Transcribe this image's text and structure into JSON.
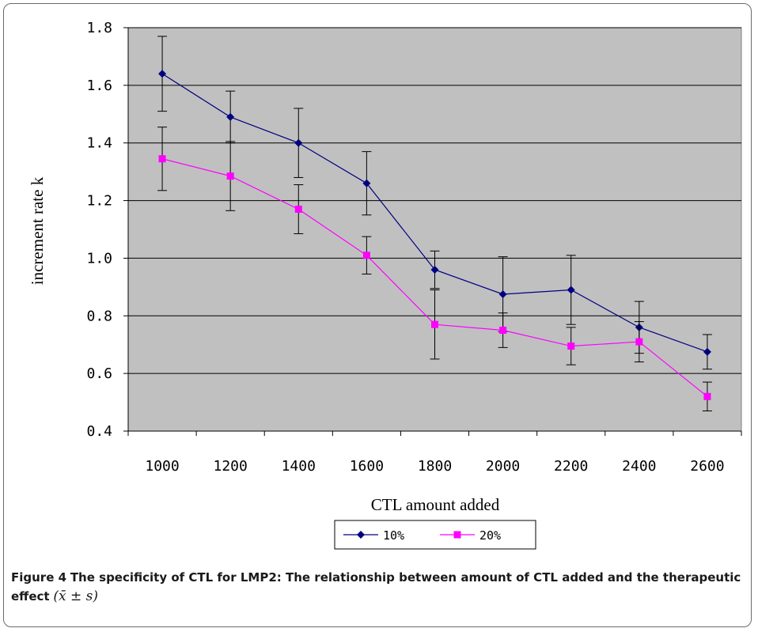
{
  "chart_data": {
    "type": "line",
    "title": "",
    "xlabel": "CTL amount added",
    "ylabel": "increment rate k",
    "categories": [
      "1000",
      "1200",
      "1400",
      "1600",
      "1800",
      "2000",
      "2200",
      "2400",
      "2600"
    ],
    "y_ticks": [
      "1.8",
      "1.6",
      "1.4",
      "1.2",
      "1.0",
      "0.8",
      "0.6",
      "0.4"
    ],
    "ylim": [
      0.4,
      1.8
    ],
    "grid": true,
    "legend_position": "bottom",
    "series": [
      {
        "name": "10%",
        "color": "#000080",
        "marker": "diamond",
        "values": [
          1.64,
          1.49,
          1.4,
          1.26,
          0.96,
          0.875,
          0.89,
          0.76,
          0.675
        ],
        "error": [
          0.13,
          0.09,
          0.12,
          0.11,
          0.065,
          0.13,
          0.12,
          0.09,
          0.06
        ]
      },
      {
        "name": "20%",
        "color": "#FF00FF",
        "marker": "square",
        "values": [
          1.345,
          1.285,
          1.17,
          1.01,
          0.77,
          0.75,
          0.695,
          0.71,
          0.52
        ],
        "error": [
          0.11,
          0.12,
          0.085,
          0.065,
          0.12,
          0.06,
          0.065,
          0.07,
          0.05
        ]
      }
    ],
    "colors": {
      "plot_background": "#C0C0C0",
      "gridline": "#000000",
      "error_bar": "#000000"
    }
  },
  "caption": {
    "label": "Figure 4",
    "text": "The specificity of CTL for LMP2: The relationship between amount of CTL added and the therapeutic effect",
    "formula": "(x̄ ± s)"
  }
}
